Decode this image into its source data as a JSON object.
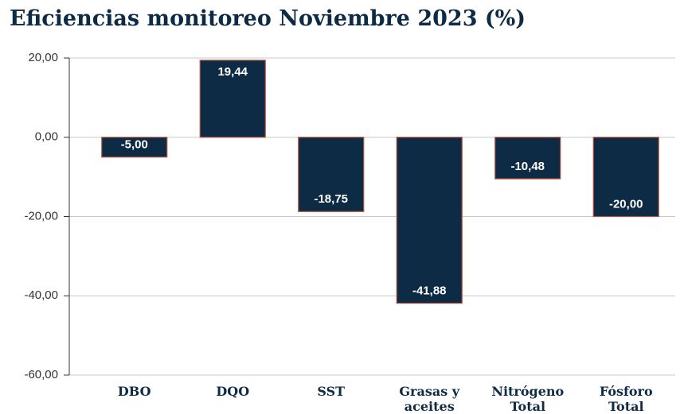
{
  "chart_data": {
    "type": "bar",
    "title": "Eficiencias monitoreo Noviembre 2023 (%)",
    "categories": [
      "DBO",
      "DQO",
      "SST",
      "Grasas y aceites",
      "Nitrógeno Total",
      "Fósforo Total"
    ],
    "values": [
      -5,
      19.44,
      -18.75,
      -41.88,
      -10.48,
      -20
    ],
    "value_labels": [
      "-5,00",
      "19,44",
      "-18,75",
      "-41,88",
      "-10,48",
      "-20,00"
    ],
    "color": "#0d2b45",
    "edge_color": "#b5533c",
    "ylim": [
      -60,
      20
    ],
    "yticks": [
      {
        "value": -60,
        "label": "-60,00"
      },
      {
        "value": -40,
        "label": "-40,00"
      },
      {
        "value": -20,
        "label": "-20,00"
      },
      {
        "value": 0,
        "label": "0,00"
      },
      {
        "value": 20,
        "label": "20,00"
      }
    ],
    "grid": true
  }
}
